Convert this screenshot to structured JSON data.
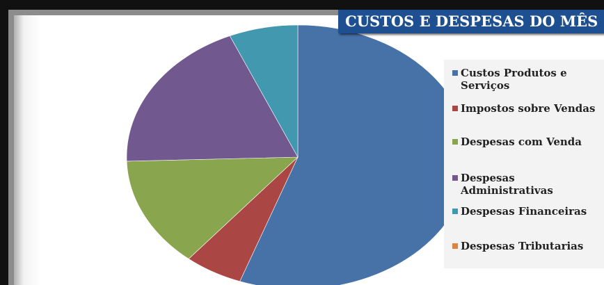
{
  "chart_data": {
    "type": "pie",
    "title": "CUSTOS E DESPESAS  DO MÊS",
    "categories": [
      "Custos Produtos e Serviços",
      "Impostos sobre Vendas",
      "Despesas com Venda",
      "Despesas Administrativas",
      "Despesas Financeiras",
      "Despesas Tributarias"
    ],
    "values": [
      55.5,
      5.5,
      13.5,
      19.0,
      6.5,
      0
    ],
    "colors": [
      "#4672a8",
      "#aa4643",
      "#89a54e",
      "#71588f",
      "#4198af",
      "#db843d"
    ],
    "legend_position": "right"
  },
  "legend": [
    {
      "label": "Custos Produtos e\nServiços",
      "color": "#4672a8"
    },
    {
      "label": "Impostos sobre Vendas",
      "color": "#aa4643"
    },
    {
      "label": "Despesas com Venda",
      "color": "#89a54e"
    },
    {
      "label": "Despesas\nAdministrativas",
      "color": "#71588f"
    },
    {
      "label": "Despesas Financeiras",
      "color": "#4198af"
    },
    {
      "label": "Despesas Tributarias",
      "color": "#db843d"
    }
  ]
}
